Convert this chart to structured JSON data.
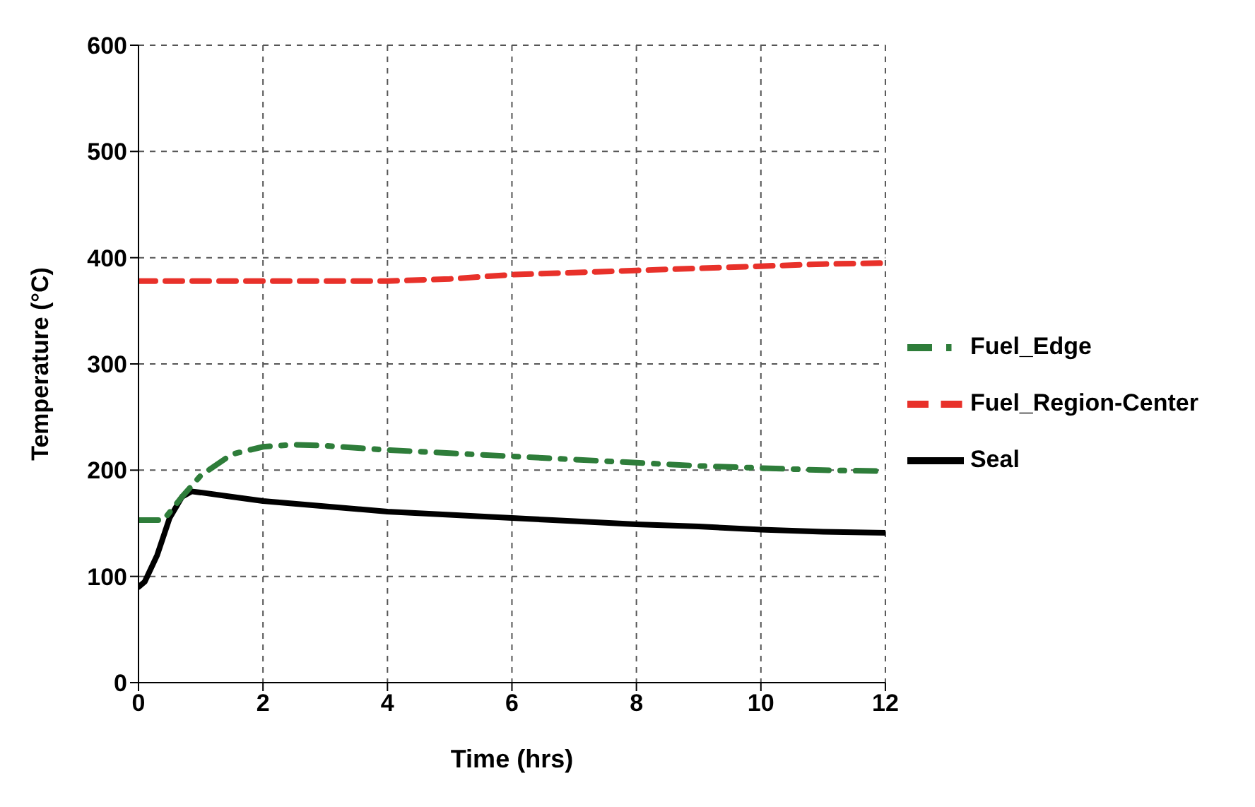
{
  "chart_data": {
    "type": "line",
    "xlabel": "Time (hrs)",
    "ylabel": "Temperature (°C)",
    "xlim": [
      0,
      12
    ],
    "xticks": [
      0,
      2,
      4,
      6,
      8,
      10,
      12
    ],
    "ylim": [
      0,
      600
    ],
    "yticks": [
      0,
      100,
      200,
      300,
      400,
      500,
      600
    ],
    "grid": true,
    "legend": "right",
    "series": [
      {
        "name": "Seal",
        "color": "#000000",
        "line_style": "solid",
        "x": [
          0,
          0.1,
          0.3,
          0.5,
          0.7,
          0.85,
          1,
          1.5,
          2,
          3,
          4,
          5,
          6,
          7,
          8,
          9,
          10,
          11,
          12
        ],
        "values": [
          90,
          95,
          120,
          155,
          175,
          180,
          179,
          175,
          171,
          166,
          161,
          158,
          155,
          152,
          149,
          147,
          144,
          142,
          141
        ]
      },
      {
        "name": "Fuel_Region-Center",
        "color": "#e8312a",
        "line_style": "dashed",
        "x": [
          0,
          2,
          4,
          5,
          6,
          7,
          8,
          9,
          10,
          11,
          12
        ],
        "values": [
          378,
          378,
          378,
          380,
          384,
          386,
          388,
          390,
          392,
          394,
          395
        ]
      },
      {
        "name": "Fuel_Edge",
        "color": "#2e7d3a",
        "line_style": "dotted",
        "x": [
          0,
          0.4,
          0.7,
          1,
          1.5,
          2,
          2.5,
          3,
          4,
          5,
          6,
          7,
          8,
          9,
          10,
          11,
          12
        ],
        "values": [
          153,
          153,
          175,
          195,
          215,
          222,
          224,
          223,
          219,
          216,
          213,
          210,
          207,
          204,
          202,
          200,
          199
        ]
      }
    ]
  }
}
